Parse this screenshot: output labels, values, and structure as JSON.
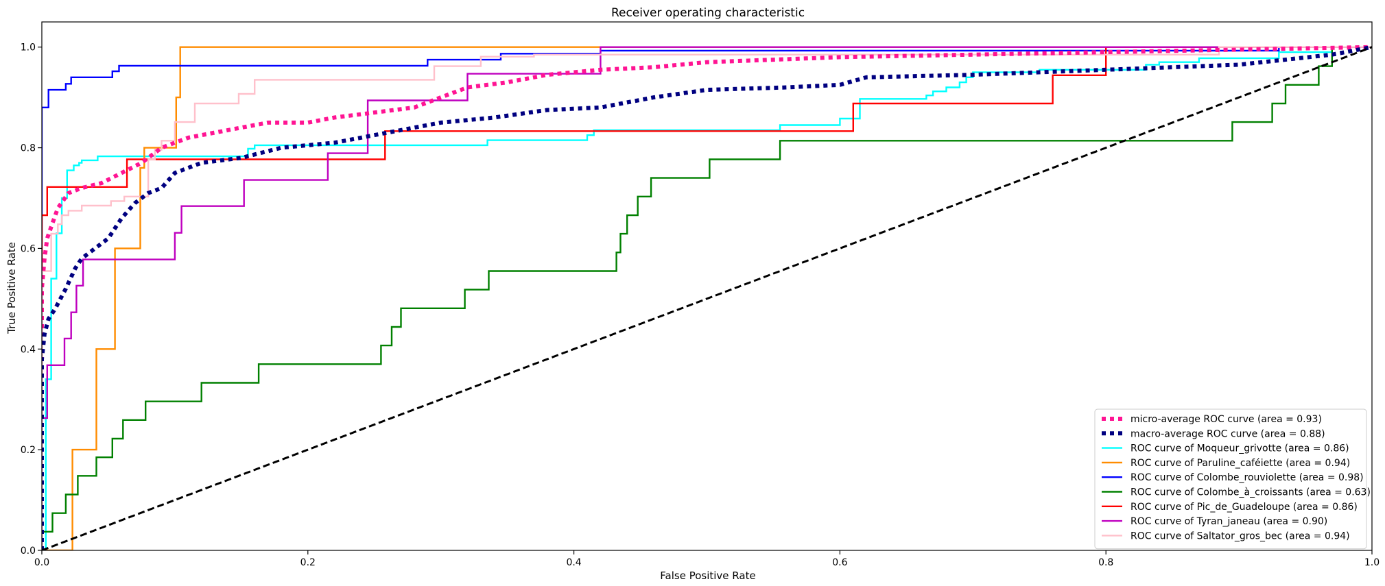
{
  "chart_data": {
    "type": "line",
    "title": "Receiver operating characteristic",
    "xlabel": "False Positive Rate",
    "ylabel": "True Positive Rate",
    "xlim": [
      0.0,
      1.0
    ],
    "ylim": [
      0.0,
      1.05
    ],
    "xticks": [
      0.0,
      0.2,
      0.4,
      0.6,
      0.8,
      1.0
    ],
    "yticks": [
      0.0,
      0.2,
      0.4,
      0.6,
      0.8,
      1.0
    ],
    "xtick_labels": [
      "0.0",
      "0.2",
      "0.4",
      "0.6",
      "0.8",
      "1.0"
    ],
    "ytick_labels": [
      "0.0",
      "0.2",
      "0.4",
      "0.6",
      "0.8",
      "1.0"
    ],
    "grid": false,
    "legend_position": "lower-right",
    "series": [
      {
        "name": "micro-average ROC curve (area = 0.93)",
        "color": "#ff1493",
        "style": "dotted",
        "width": "thick",
        "x": [
          0.0,
          0.0,
          0.002,
          0.004,
          0.008,
          0.012,
          0.02,
          0.03,
          0.045,
          0.06,
          0.075,
          0.09,
          0.11,
          0.13,
          0.15,
          0.17,
          0.2,
          0.22,
          0.25,
          0.28,
          0.3,
          0.32,
          0.35,
          0.38,
          0.42,
          0.46,
          0.5,
          0.55,
          0.6,
          0.7,
          0.8,
          0.9,
          1.0
        ],
        "y": [
          0.0,
          0.52,
          0.58,
          0.62,
          0.65,
          0.68,
          0.71,
          0.72,
          0.73,
          0.75,
          0.77,
          0.8,
          0.82,
          0.83,
          0.84,
          0.85,
          0.85,
          0.86,
          0.87,
          0.88,
          0.9,
          0.92,
          0.93,
          0.945,
          0.955,
          0.96,
          0.97,
          0.975,
          0.98,
          0.985,
          0.99,
          0.995,
          1.0
        ]
      },
      {
        "name": "macro-average ROC curve (area = 0.88)",
        "color": "#000080",
        "style": "dotted",
        "width": "thick",
        "x": [
          0.0,
          0.0,
          0.002,
          0.005,
          0.01,
          0.018,
          0.025,
          0.03,
          0.04,
          0.05,
          0.06,
          0.07,
          0.08,
          0.09,
          0.1,
          0.12,
          0.15,
          0.18,
          0.22,
          0.26,
          0.3,
          0.34,
          0.38,
          0.42,
          0.46,
          0.5,
          0.56,
          0.6,
          0.62,
          0.7,
          0.8,
          0.9,
          0.97,
          1.0
        ],
        "y": [
          0.0,
          0.38,
          0.43,
          0.46,
          0.48,
          0.52,
          0.56,
          0.58,
          0.6,
          0.62,
          0.66,
          0.69,
          0.71,
          0.72,
          0.75,
          0.77,
          0.78,
          0.8,
          0.81,
          0.83,
          0.85,
          0.86,
          0.875,
          0.88,
          0.9,
          0.915,
          0.92,
          0.925,
          0.94,
          0.945,
          0.955,
          0.965,
          0.985,
          1.0
        ]
      },
      {
        "name": "ROC curve of Moqueur_grivotte (area = 0.86)",
        "color": "#00ffff",
        "style": "solid",
        "width": "normal",
        "x": [
          0.0,
          0.003,
          0.003,
          0.007,
          0.007,
          0.011,
          0.011,
          0.015,
          0.015,
          0.019,
          0.019,
          0.024,
          0.024,
          0.028,
          0.028,
          0.03,
          0.03,
          0.042,
          0.042,
          0.155,
          0.155,
          0.16,
          0.16,
          0.335,
          0.335,
          0.41,
          0.41,
          0.415,
          0.415,
          0.555,
          0.555,
          0.6,
          0.6,
          0.615,
          0.615,
          0.665,
          0.665,
          0.67,
          0.67,
          0.68,
          0.68,
          0.69,
          0.69,
          0.695,
          0.695,
          0.7,
          0.7,
          0.75,
          0.75,
          0.83,
          0.83,
          0.84,
          0.84,
          0.87,
          0.87,
          0.93,
          0.93,
          0.97,
          0.97,
          1.0
        ],
        "y": [
          0.0,
          0.0,
          0.34,
          0.34,
          0.54,
          0.54,
          0.63,
          0.63,
          0.7,
          0.7,
          0.755,
          0.755,
          0.765,
          0.765,
          0.77,
          0.77,
          0.775,
          0.775,
          0.783,
          0.783,
          0.798,
          0.798,
          0.805,
          0.805,
          0.815,
          0.815,
          0.825,
          0.825,
          0.835,
          0.835,
          0.845,
          0.845,
          0.858,
          0.858,
          0.897,
          0.897,
          0.904,
          0.904,
          0.912,
          0.912,
          0.92,
          0.92,
          0.93,
          0.93,
          0.94,
          0.94,
          0.95,
          0.95,
          0.955,
          0.955,
          0.965,
          0.965,
          0.97,
          0.97,
          0.978,
          0.978,
          0.99,
          0.99,
          1.0,
          1.0
        ]
      },
      {
        "name": "ROC curve of Paruline_caféiette (area = 0.94)",
        "color": "#ff8c00",
        "style": "solid",
        "width": "normal",
        "x": [
          0.0,
          0.023,
          0.023,
          0.041,
          0.041,
          0.055,
          0.055,
          0.074,
          0.074,
          0.077,
          0.077,
          0.101,
          0.101,
          0.104,
          0.104,
          1.0
        ],
        "y": [
          0.0,
          0.0,
          0.2,
          0.2,
          0.4,
          0.4,
          0.6,
          0.6,
          0.76,
          0.76,
          0.8,
          0.8,
          0.9,
          0.9,
          1.0,
          1.0
        ]
      },
      {
        "name": "ROC curve of Colombe_rouviolette (area = 0.98)",
        "color": "#0000ff",
        "style": "solid",
        "width": "normal",
        "x": [
          0.0,
          0.0,
          0.005,
          0.005,
          0.018,
          0.018,
          0.022,
          0.022,
          0.053,
          0.053,
          0.058,
          0.058,
          0.29,
          0.29,
          0.345,
          0.345,
          0.42,
          0.42,
          0.93,
          0.93,
          1.0
        ],
        "y": [
          0.0,
          0.88,
          0.88,
          0.915,
          0.915,
          0.927,
          0.927,
          0.94,
          0.94,
          0.952,
          0.952,
          0.963,
          0.963,
          0.975,
          0.975,
          0.987,
          0.987,
          0.993,
          0.993,
          1.0,
          1.0
        ]
      },
      {
        "name": "ROC curve of Colombe_à_croissants (area = 0.63)",
        "color": "#008000",
        "style": "solid",
        "width": "normal",
        "x": [
          0.0,
          0.0,
          0.008,
          0.008,
          0.018,
          0.018,
          0.027,
          0.027,
          0.041,
          0.041,
          0.053,
          0.053,
          0.061,
          0.061,
          0.078,
          0.078,
          0.12,
          0.12,
          0.163,
          0.163,
          0.255,
          0.255,
          0.263,
          0.263,
          0.27,
          0.27,
          0.318,
          0.318,
          0.336,
          0.336,
          0.432,
          0.432,
          0.435,
          0.435,
          0.44,
          0.44,
          0.448,
          0.448,
          0.458,
          0.458,
          0.502,
          0.502,
          0.555,
          0.555,
          0.895,
          0.895,
          0.925,
          0.925,
          0.935,
          0.935,
          0.96,
          0.96,
          0.97,
          0.97,
          1.0
        ],
        "y": [
          0.0,
          0.037,
          0.037,
          0.074,
          0.074,
          0.111,
          0.111,
          0.148,
          0.148,
          0.185,
          0.185,
          0.222,
          0.222,
          0.259,
          0.259,
          0.296,
          0.296,
          0.333,
          0.333,
          0.37,
          0.37,
          0.407,
          0.407,
          0.444,
          0.444,
          0.481,
          0.481,
          0.518,
          0.518,
          0.555,
          0.555,
          0.592,
          0.592,
          0.629,
          0.629,
          0.666,
          0.666,
          0.703,
          0.703,
          0.74,
          0.74,
          0.777,
          0.777,
          0.814,
          0.814,
          0.851,
          0.851,
          0.888,
          0.888,
          0.925,
          0.925,
          0.962,
          0.962,
          1.0,
          1.0
        ]
      },
      {
        "name": "ROC curve of Pic_de_Guadeloupe (area = 0.86)",
        "color": "#ff0000",
        "style": "solid",
        "width": "normal",
        "x": [
          0.0,
          0.0,
          0.004,
          0.004,
          0.064,
          0.064,
          0.258,
          0.258,
          0.61,
          0.61,
          0.76,
          0.76,
          0.8,
          0.8,
          1.0
        ],
        "y": [
          0.0,
          0.666,
          0.666,
          0.722,
          0.722,
          0.777,
          0.777,
          0.833,
          0.833,
          0.888,
          0.888,
          0.944,
          0.944,
          1.0,
          1.0
        ]
      },
      {
        "name": "ROC curve of Tyran_janeau (area = 0.90)",
        "color": "#bf00bf",
        "style": "solid",
        "width": "normal",
        "x": [
          0.0,
          0.0,
          0.004,
          0.004,
          0.017,
          0.017,
          0.022,
          0.022,
          0.026,
          0.026,
          0.031,
          0.031,
          0.1,
          0.1,
          0.105,
          0.105,
          0.152,
          0.152,
          0.215,
          0.215,
          0.245,
          0.245,
          0.32,
          0.32,
          0.42,
          0.42,
          1.0
        ],
        "y": [
          0.0,
          0.263,
          0.263,
          0.368,
          0.368,
          0.421,
          0.421,
          0.473,
          0.473,
          0.526,
          0.526,
          0.578,
          0.578,
          0.631,
          0.631,
          0.684,
          0.684,
          0.736,
          0.736,
          0.789,
          0.789,
          0.894,
          0.894,
          0.947,
          0.947,
          1.0,
          1.0
        ]
      },
      {
        "name": "ROC curve of Saltator_gros_bec (area = 0.94)",
        "color": "#ffc0cb",
        "style": "solid",
        "width": "normal",
        "x": [
          0.0,
          0.0,
          0.007,
          0.007,
          0.012,
          0.012,
          0.015,
          0.015,
          0.02,
          0.02,
          0.03,
          0.03,
          0.052,
          0.052,
          0.062,
          0.062,
          0.08,
          0.08,
          0.085,
          0.085,
          0.09,
          0.09,
          0.1,
          0.1,
          0.115,
          0.115,
          0.148,
          0.148,
          0.16,
          0.16,
          0.295,
          0.295,
          0.33,
          0.33,
          0.37,
          0.37,
          0.885,
          0.885,
          1.0
        ],
        "y": [
          0.0,
          0.555,
          0.555,
          0.629,
          0.629,
          0.648,
          0.648,
          0.666,
          0.666,
          0.675,
          0.675,
          0.685,
          0.685,
          0.694,
          0.694,
          0.703,
          0.703,
          0.777,
          0.777,
          0.796,
          0.796,
          0.814,
          0.814,
          0.851,
          0.851,
          0.888,
          0.888,
          0.907,
          0.907,
          0.935,
          0.935,
          0.962,
          0.962,
          0.981,
          0.981,
          0.985,
          0.985,
          1.0,
          1.0
        ]
      },
      {
        "name": "",
        "color": "#000000",
        "style": "dashed",
        "width": "thick",
        "x": [
          0.0,
          1.0
        ],
        "y": [
          0.0,
          1.0
        ]
      }
    ]
  }
}
